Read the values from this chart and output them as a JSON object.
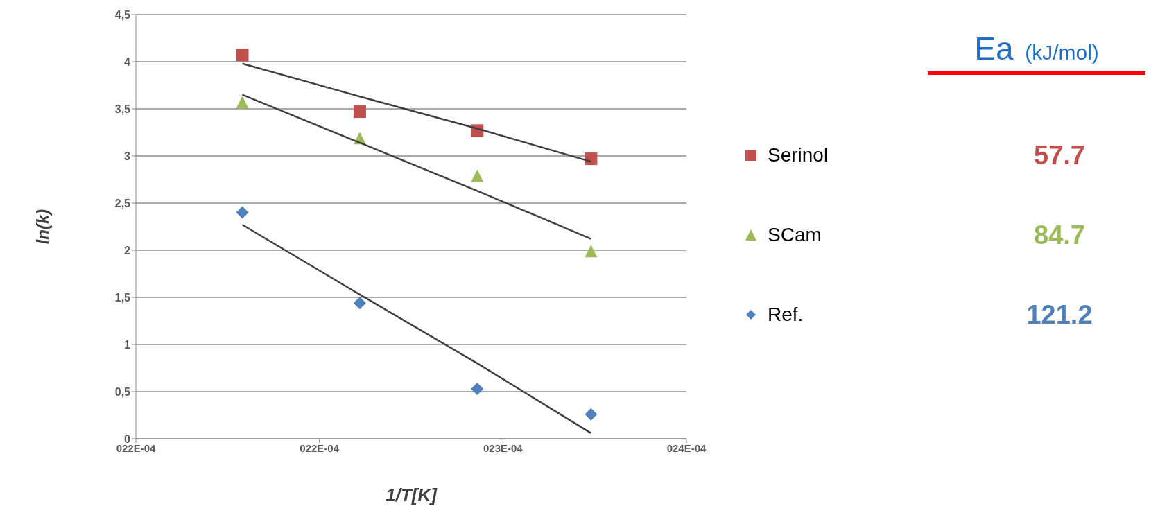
{
  "chart_data": {
    "type": "scatter",
    "xlabel": "1/T[K]",
    "ylabel": "ln(k)",
    "xlim": [
      0.0022,
      0.00235
    ],
    "xticks": [
      {
        "value": 0.0022,
        "label": "022E-04"
      },
      {
        "value": 0.00225,
        "label": "022E-04"
      },
      {
        "value": 0.0023,
        "label": "023E-04"
      },
      {
        "value": 0.00235,
        "label": "024E-04"
      }
    ],
    "ylim": [
      0,
      4.5
    ],
    "yticks": [
      {
        "value": 0,
        "label": "0"
      },
      {
        "value": 0.5,
        "label": "0,5"
      },
      {
        "value": 1,
        "label": "1"
      },
      {
        "value": 1.5,
        "label": "1,5"
      },
      {
        "value": 2,
        "label": "2"
      },
      {
        "value": 2.5,
        "label": "2,5"
      },
      {
        "value": 3,
        "label": "3"
      },
      {
        "value": 3.5,
        "label": "3,5"
      },
      {
        "value": 4,
        "label": "4"
      },
      {
        "value": 4.5,
        "label": "4,5"
      }
    ],
    "grid": "y",
    "legend": "right",
    "x": [
      0.002229,
      0.002261,
      0.002293,
      0.002324
    ],
    "series": [
      {
        "name": "Serinol",
        "color": "#c0504d",
        "marker": "square",
        "values": [
          4.07,
          3.47,
          3.27,
          2.97
        ]
      },
      {
        "name": "SCam",
        "color": "#9bbb59",
        "marker": "triangle",
        "values": [
          3.57,
          3.19,
          2.79,
          1.99
        ]
      },
      {
        "name": "Ref.",
        "color": "#4f81bd",
        "marker": "diamond",
        "values": [
          2.4,
          1.44,
          0.53,
          0.26
        ]
      },
      {
        "type": "line",
        "color": "#404040",
        "marker": "none",
        "values": [
          3.98,
          3.63,
          3.29,
          2.94
        ]
      },
      {
        "type": "line",
        "color": "#404040",
        "marker": "none",
        "values": [
          3.65,
          3.14,
          2.63,
          2.12
        ]
      },
      {
        "type": "line",
        "color": "#404040",
        "marker": "none",
        "values": [
          2.27,
          1.53,
          0.8,
          0.06
        ]
      }
    ],
    "annotations": [
      "Ea (kJ/mol)",
      "57.7",
      "84.7",
      "121.2"
    ]
  }
}
